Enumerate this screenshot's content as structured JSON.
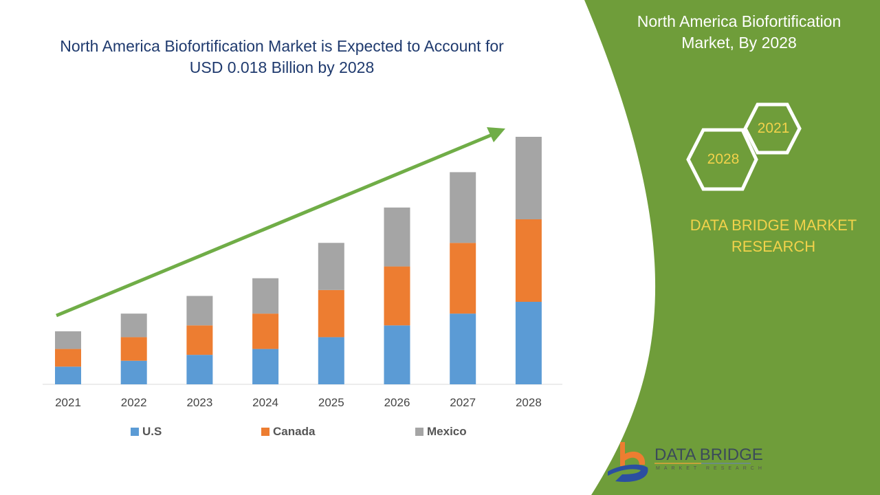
{
  "title": "North America Biofortification Market is Expected to Account for USD 0.018 Billion by 2028",
  "side_panel": {
    "title": "North America Biofortification Market, By 2028",
    "hex_years": [
      "2021",
      "2028"
    ],
    "brand": "DATA BRIDGE MARKET RESEARCH",
    "logo_text": "DATA BRIDGE",
    "logo_subtext": "MARKET RESEARCH"
  },
  "colors": {
    "us": "#5b9bd5",
    "canada": "#ed7d31",
    "mexico": "#a5a5a5",
    "arrow": "#70ad47",
    "panel": "#6f9d3a",
    "title": "#1f3a6e"
  },
  "chart_data": {
    "type": "bar",
    "stacked": true,
    "title": "",
    "xlabel": "",
    "ylabel": "",
    "categories": [
      "2021",
      "2022",
      "2023",
      "2024",
      "2025",
      "2026",
      "2027",
      "2028"
    ],
    "series": [
      {
        "name": "U.S",
        "values": [
          1.5,
          2,
          2.5,
          3,
          4,
          5,
          6,
          7
        ]
      },
      {
        "name": "Canada",
        "values": [
          1.5,
          2,
          2.5,
          3,
          4,
          5,
          6,
          7
        ]
      },
      {
        "name": "Mexico",
        "values": [
          1.5,
          2,
          2.5,
          3,
          4,
          5,
          6,
          7
        ]
      }
    ],
    "ylim": [
      0,
      21
    ],
    "y_axis_shown": false,
    "grid": false,
    "legend": "bottom",
    "trend_arrow": true
  }
}
